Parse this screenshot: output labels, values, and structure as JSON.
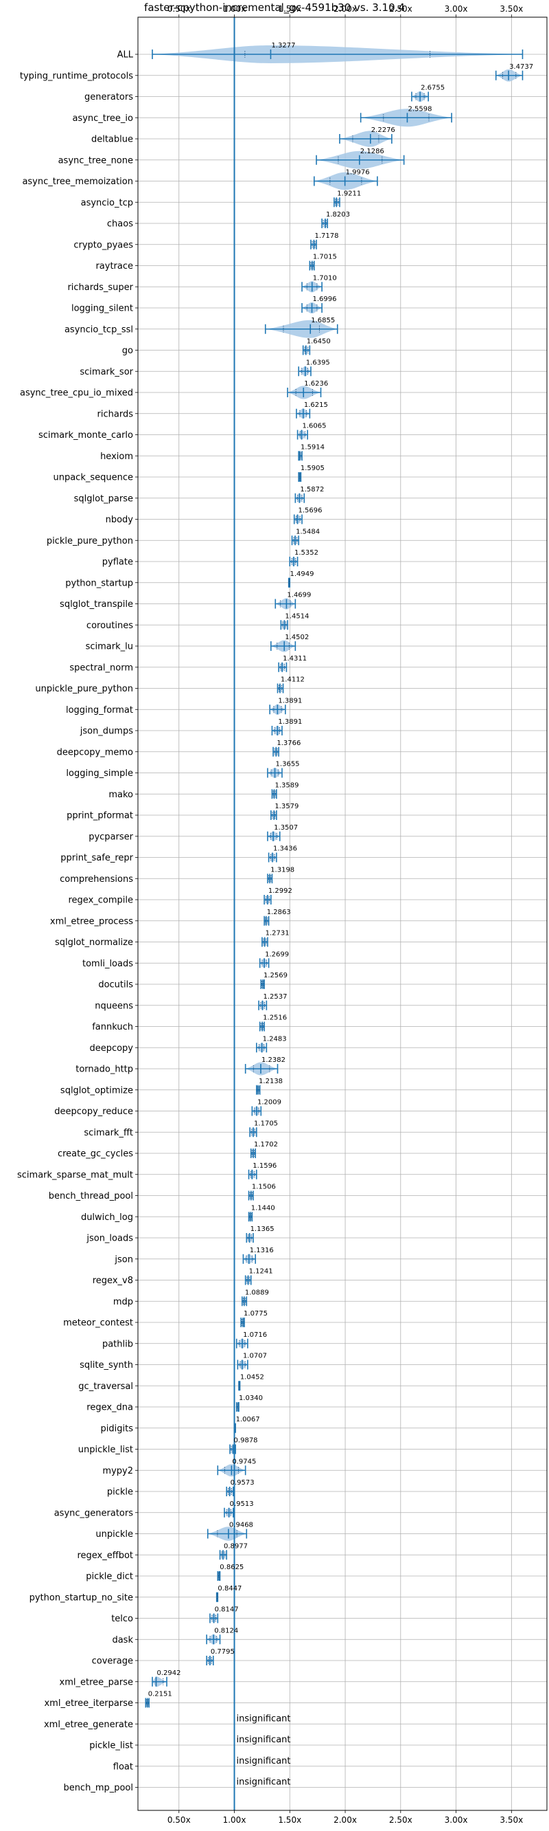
{
  "chart_data": {
    "type": "violin",
    "title": "faster-cpython-incremental_gc-4591b30 vs. 3.10.4",
    "xlabel": "",
    "ylabel": "",
    "x_tick_labels": [
      "0.50x",
      "1.00x",
      "1.50x",
      "2.00x",
      "2.50x",
      "3.00x",
      "3.50x"
    ],
    "x_ticks": [
      0.5,
      1.0,
      1.5,
      2.0,
      2.5,
      3.0,
      3.5
    ],
    "xlim": [
      0.13,
      3.82
    ],
    "reference_line": 1.0,
    "grid": true,
    "accent_color": "#1f77b4",
    "violin_color": "#a6c8e6",
    "categories": [
      "ALL",
      "typing_runtime_protocols",
      "generators",
      "async_tree_io",
      "deltablue",
      "async_tree_none",
      "async_tree_memoization",
      "asyncio_tcp",
      "chaos",
      "crypto_pyaes",
      "raytrace",
      "richards_super",
      "logging_silent",
      "asyncio_tcp_ssl",
      "go",
      "scimark_sor",
      "async_tree_cpu_io_mixed",
      "richards",
      "scimark_monte_carlo",
      "hexiom",
      "unpack_sequence",
      "sqlglot_parse",
      "nbody",
      "pickle_pure_python",
      "pyflate",
      "python_startup",
      "sqlglot_transpile",
      "coroutines",
      "scimark_lu",
      "spectral_norm",
      "unpickle_pure_python",
      "logging_format",
      "json_dumps",
      "deepcopy_memo",
      "logging_simple",
      "mako",
      "pprint_pformat",
      "pycparser",
      "pprint_safe_repr",
      "comprehensions",
      "regex_compile",
      "xml_etree_process",
      "sqlglot_normalize",
      "tomli_loads",
      "docutils",
      "nqueens",
      "fannkuch",
      "deepcopy",
      "tornado_http",
      "sqlglot_optimize",
      "deepcopy_reduce",
      "scimark_fft",
      "create_gc_cycles",
      "scimark_sparse_mat_mult",
      "bench_thread_pool",
      "dulwich_log",
      "json_loads",
      "json",
      "regex_v8",
      "mdp",
      "meteor_contest",
      "pathlib",
      "sqlite_synth",
      "gc_traversal",
      "regex_dna",
      "pidigits",
      "unpickle_list",
      "mypy2",
      "pickle",
      "async_generators",
      "unpickle",
      "regex_effbot",
      "pickle_dict",
      "python_startup_no_site",
      "telco",
      "dask",
      "coverage",
      "xml_etree_parse",
      "xml_etree_iterparse",
      "xml_etree_generate",
      "pickle_list",
      "float",
      "bench_mp_pool"
    ],
    "values": [
      1.3277,
      3.4737,
      2.6755,
      2.5598,
      2.2276,
      2.1286,
      1.9976,
      1.9211,
      1.8203,
      1.7178,
      1.7015,
      1.701,
      1.6996,
      1.6855,
      1.645,
      1.6395,
      1.6236,
      1.6215,
      1.6065,
      1.5914,
      1.5905,
      1.5872,
      1.5696,
      1.5484,
      1.5352,
      1.4949,
      1.4699,
      1.4514,
      1.4502,
      1.4311,
      1.4112,
      1.3891,
      1.3891,
      1.3766,
      1.3655,
      1.3589,
      1.3579,
      1.3507,
      1.3436,
      1.3198,
      1.2992,
      1.2863,
      1.2731,
      1.2699,
      1.2569,
      1.2537,
      1.2516,
      1.2483,
      1.2382,
      1.2138,
      1.2009,
      1.1705,
      1.1702,
      1.1596,
      1.1506,
      1.144,
      1.1365,
      1.1316,
      1.1241,
      1.0889,
      1.0775,
      1.0716,
      1.0707,
      1.0452,
      1.034,
      1.0067,
      0.9878,
      0.9745,
      0.9573,
      0.9513,
      0.9468,
      0.8977,
      0.8625,
      0.8447,
      0.8147,
      0.8124,
      0.7795,
      0.2942,
      0.2151,
      null,
      null,
      null,
      null
    ],
    "labels": [
      "1.3277",
      "3.4737",
      "2.6755",
      "2.5598",
      "2.2276",
      "2.1286",
      "1.9976",
      "1.9211",
      "1.8203",
      "1.7178",
      "1.7015",
      "1.7010",
      "1.6996",
      "1.6855",
      "1.6450",
      "1.6395",
      "1.6236",
      "1.6215",
      "1.6065",
      "1.5914",
      "1.5905",
      "1.5872",
      "1.5696",
      "1.5484",
      "1.5352",
      "1.4949",
      "1.4699",
      "1.4514",
      "1.4502",
      "1.4311",
      "1.4112",
      "1.3891",
      "1.3891",
      "1.3766",
      "1.3655",
      "1.3589",
      "1.3579",
      "1.3507",
      "1.3436",
      "1.3198",
      "1.2992",
      "1.2863",
      "1.2731",
      "1.2699",
      "1.2569",
      "1.2537",
      "1.2516",
      "1.2483",
      "1.2382",
      "1.2138",
      "1.2009",
      "1.1705",
      "1.1702",
      "1.1596",
      "1.1506",
      "1.1440",
      "1.1365",
      "1.1316",
      "1.1241",
      "1.0889",
      "1.0775",
      "1.0716",
      "1.0707",
      "1.0452",
      "1.0340",
      "1.0067",
      "0.9878",
      "0.9745",
      "0.9573",
      "0.9513",
      "0.9468",
      "0.8977",
      "0.8625",
      "0.8447",
      "0.8147",
      "0.8124",
      "0.7795",
      "0.2942",
      "0.2151",
      "insignificant",
      "insignificant",
      "insignificant",
      "insignificant"
    ],
    "ranges": [
      [
        0.26,
        3.6
      ],
      [
        3.36,
        3.6
      ],
      [
        2.6,
        2.75
      ],
      [
        2.14,
        2.96
      ],
      [
        1.95,
        2.42
      ],
      [
        1.74,
        2.53
      ],
      [
        1.72,
        2.29
      ],
      [
        1.9,
        1.95
      ],
      [
        1.79,
        1.84
      ],
      [
        1.69,
        1.74
      ],
      [
        1.68,
        1.72
      ],
      [
        1.61,
        1.79
      ],
      [
        1.61,
        1.79
      ],
      [
        1.28,
        1.93
      ],
      [
        1.62,
        1.68
      ],
      [
        1.58,
        1.69
      ],
      [
        1.48,
        1.78
      ],
      [
        1.56,
        1.68
      ],
      [
        1.57,
        1.66
      ],
      [
        1.58,
        1.61
      ],
      [
        1.58,
        1.6
      ],
      [
        1.55,
        1.63
      ],
      [
        1.54,
        1.61
      ],
      [
        1.52,
        1.58
      ],
      [
        1.5,
        1.57
      ],
      [
        1.49,
        1.5
      ],
      [
        1.37,
        1.55
      ],
      [
        1.42,
        1.48
      ],
      [
        1.33,
        1.55
      ],
      [
        1.4,
        1.47
      ],
      [
        1.39,
        1.44
      ],
      [
        1.32,
        1.46
      ],
      [
        1.34,
        1.43
      ],
      [
        1.35,
        1.4
      ],
      [
        1.3,
        1.43
      ],
      [
        1.34,
        1.38
      ],
      [
        1.33,
        1.38
      ],
      [
        1.3,
        1.41
      ],
      [
        1.31,
        1.38
      ],
      [
        1.3,
        1.34
      ],
      [
        1.27,
        1.33
      ],
      [
        1.27,
        1.31
      ],
      [
        1.25,
        1.3
      ],
      [
        1.23,
        1.31
      ],
      [
        1.24,
        1.27
      ],
      [
        1.22,
        1.29
      ],
      [
        1.23,
        1.27
      ],
      [
        1.2,
        1.29
      ],
      [
        1.1,
        1.39
      ],
      [
        1.2,
        1.23
      ],
      [
        1.16,
        1.24
      ],
      [
        1.14,
        1.2
      ],
      [
        1.15,
        1.19
      ],
      [
        1.13,
        1.2
      ],
      [
        1.13,
        1.17
      ],
      [
        1.13,
        1.16
      ],
      [
        1.11,
        1.17
      ],
      [
        1.08,
        1.19
      ],
      [
        1.1,
        1.15
      ],
      [
        1.07,
        1.11
      ],
      [
        1.06,
        1.09
      ],
      [
        1.02,
        1.12
      ],
      [
        1.03,
        1.12
      ],
      [
        1.04,
        1.05
      ],
      [
        1.02,
        1.04
      ],
      [
        1.0,
        1.01
      ],
      [
        0.96,
        1.01
      ],
      [
        0.85,
        1.1
      ],
      [
        0.93,
        0.99
      ],
      [
        0.91,
        0.99
      ],
      [
        0.76,
        1.11
      ],
      [
        0.87,
        0.93
      ],
      [
        0.85,
        0.87
      ],
      [
        0.84,
        0.85
      ],
      [
        0.78,
        0.85
      ],
      [
        0.75,
        0.87
      ],
      [
        0.75,
        0.81
      ],
      [
        0.26,
        0.39
      ],
      [
        0.2,
        0.23
      ],
      null,
      null,
      null,
      null
    ]
  }
}
